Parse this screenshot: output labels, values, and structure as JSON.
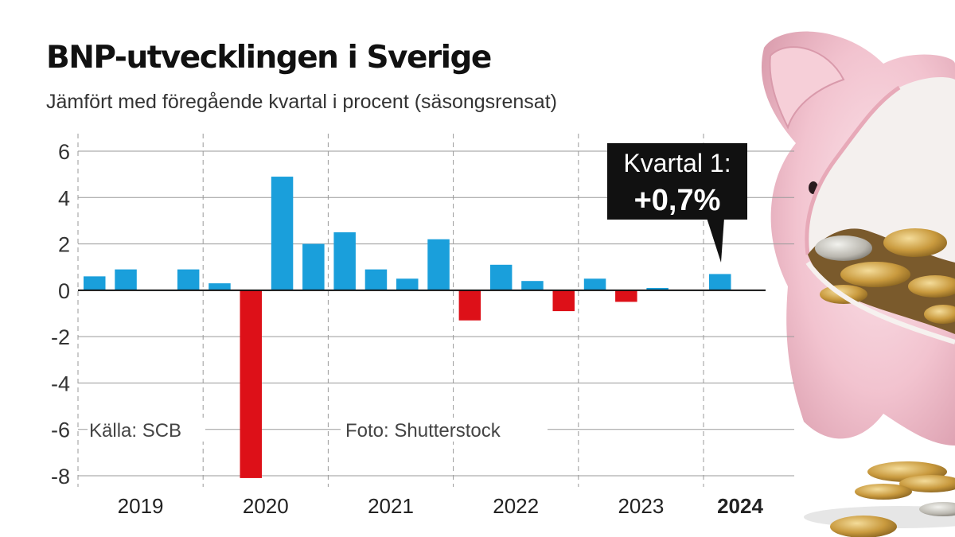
{
  "chart_data": {
    "type": "bar",
    "title": "BNP-utvecklingen i Sverige",
    "subtitle": "Jämfört med föregående kvartal i procent (säsongsrensat)",
    "xlabel": "",
    "ylabel": "",
    "ylim": [
      -8,
      6
    ],
    "yticks": [
      6,
      4,
      2,
      0,
      -2,
      -4,
      -6,
      -8
    ],
    "grid": true,
    "years": [
      "2019",
      "2020",
      "2021",
      "2022",
      "2023",
      "2024"
    ],
    "quarters": [
      "2019 Q1",
      "2019 Q2",
      "2019 Q3",
      "2019 Q4",
      "2020 Q1",
      "2020 Q2",
      "2020 Q3",
      "2020 Q4",
      "2021 Q1",
      "2021 Q2",
      "2021 Q3",
      "2021 Q4",
      "2022 Q1",
      "2022 Q2",
      "2022 Q3",
      "2022 Q4",
      "2023 Q1",
      "2023 Q2",
      "2023 Q3",
      "2023 Q4",
      "2024 Q1"
    ],
    "values": [
      0.6,
      0.9,
      0.0,
      0.9,
      0.3,
      -8.1,
      4.9,
      2.0,
      2.5,
      0.9,
      0.5,
      2.2,
      -1.3,
      1.1,
      0.4,
      -0.9,
      0.5,
      -0.5,
      0.1,
      0.0,
      0.7
    ],
    "colors": {
      "positive": "#1a9fdb",
      "negative": "#dd1018"
    },
    "callout": {
      "line1": "Kvartal 1:",
      "line2": "+0,7%"
    },
    "source": "Källa: SCB",
    "photo_credit": "Foto: Shutterstock"
  }
}
